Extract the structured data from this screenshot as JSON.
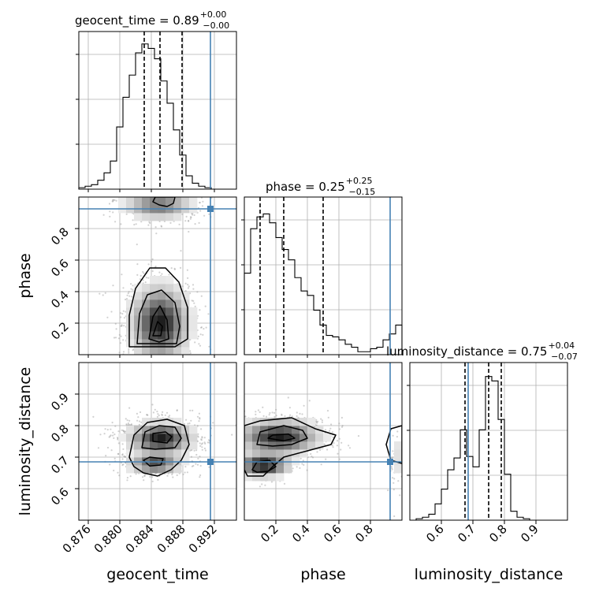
{
  "chart_data": {
    "type": "corner",
    "parameters": [
      "geocent_time",
      "phase",
      "luminosity_distance"
    ],
    "truths": {
      "geocent_time": 0.8915,
      "phase": 0.925,
      "luminosity_distance": 0.685
    },
    "ranges": {
      "geocent_time": [
        0.8748,
        0.8948
      ],
      "phase": [
        0.0,
        1.0
      ],
      "luminosity_distance": [
        0.5,
        1.0
      ]
    },
    "ticks": {
      "geocent_time": [
        0.876,
        0.88,
        0.884,
        0.888,
        0.892
      ],
      "phase_x": [
        0.2,
        0.4,
        0.6,
        0.8
      ],
      "phase_y": [
        0.2,
        0.4,
        0.6,
        0.8
      ],
      "luminosity_distance_x": [
        0.6,
        0.7,
        0.8,
        0.9
      ],
      "luminosity_distance_y": [
        0.6,
        0.7,
        0.8,
        0.9
      ]
    },
    "tick_labels": {
      "geocent_time": [
        "0.876",
        "0.880",
        "0.884",
        "0.888",
        "0.892"
      ],
      "phase": [
        "0.2",
        "0.4",
        "0.6",
        "0.8"
      ],
      "luminosity_distance": [
        "0.6",
        "0.7",
        "0.8",
        "0.9"
      ]
    },
    "axis_labels": {
      "geocent_time": "geocent_time",
      "phase": "phase",
      "luminosity_distance": "luminosity_distance"
    },
    "titles": {
      "geocent_time": {
        "prefix": "geocent_time = ",
        "value": "0.89",
        "plus": "+0.00",
        "minus": "−0.00"
      },
      "phase": {
        "prefix": "phase = ",
        "value": "0.25",
        "plus": "+0.25",
        "minus": "−0.15"
      },
      "luminosity_distance": {
        "prefix": "luminosity_distance = ",
        "value": "0.75",
        "plus": "+0.04",
        "minus": "−0.07"
      }
    },
    "quantiles": {
      "geocent_time": [
        0.8831,
        0.8851,
        0.8879
      ],
      "phase": [
        0.1,
        0.25,
        0.5
      ],
      "luminosity_distance": [
        0.675,
        0.75,
        0.79
      ]
    },
    "hist_geocent_time": {
      "bins_start": 0.8748,
      "bin_width": 0.0008,
      "counts": [
        0.01,
        0.02,
        0.03,
        0.06,
        0.11,
        0.19,
        0.42,
        0.62,
        0.77,
        0.92,
        0.98,
        0.95,
        0.88,
        0.73,
        0.58,
        0.4,
        0.23,
        0.09,
        0.04,
        0.02,
        0.01,
        0.0,
        0.0,
        0.0,
        0.0
      ]
    },
    "hist_phase": {
      "bins_start": 0.0,
      "bin_width": 0.04,
      "counts": [
        0.55,
        0.85,
        0.93,
        0.95,
        0.89,
        0.79,
        0.71,
        0.64,
        0.52,
        0.43,
        0.4,
        0.3,
        0.2,
        0.13,
        0.12,
        0.1,
        0.07,
        0.05,
        0.02,
        0.02,
        0.04,
        0.05,
        0.1,
        0.14,
        0.2
      ]
    },
    "hist_luminosity_distance": {
      "bins_start": 0.5,
      "bin_width": 0.02,
      "counts": [
        0.0,
        0.01,
        0.02,
        0.04,
        0.11,
        0.21,
        0.34,
        0.42,
        0.61,
        0.43,
        0.36,
        0.61,
        0.97,
        0.94,
        0.68,
        0.31,
        0.06,
        0.02,
        0.01,
        0.0,
        0.0,
        0.0,
        0.0,
        0.0,
        0.0
      ]
    },
    "pair_phase_vs_geocent_time": {
      "modes": [
        {
          "mx": 0.8851,
          "my": 0.2,
          "sx": 0.002,
          "sy": 0.13,
          "w": 0.78
        },
        {
          "mx": 0.8849,
          "my": 0.95,
          "sx": 0.0024,
          "sy": 0.05,
          "w": 0.22
        }
      ],
      "contours": [
        [
          [
            0.8812,
            0.05
          ],
          [
            0.8812,
            0.25
          ],
          [
            0.882,
            0.42
          ],
          [
            0.8838,
            0.55
          ],
          [
            0.8858,
            0.55
          ],
          [
            0.8875,
            0.46
          ],
          [
            0.8886,
            0.3
          ],
          [
            0.8886,
            0.1
          ],
          [
            0.887,
            0.05
          ]
        ],
        [
          [
            0.8822,
            0.07
          ],
          [
            0.8825,
            0.26
          ],
          [
            0.8835,
            0.38
          ],
          [
            0.8853,
            0.41
          ],
          [
            0.887,
            0.33
          ],
          [
            0.8876,
            0.18
          ],
          [
            0.8872,
            0.07
          ]
        ],
        [
          [
            0.8837,
            0.1
          ],
          [
            0.8842,
            0.24
          ],
          [
            0.8851,
            0.31
          ],
          [
            0.886,
            0.22
          ],
          [
            0.8862,
            0.1
          ],
          [
            0.885,
            0.08
          ]
        ],
        [
          [
            0.8842,
            0.12
          ],
          [
            0.8848,
            0.21
          ],
          [
            0.8854,
            0.18
          ],
          [
            0.8852,
            0.12
          ]
        ],
        [
          [
            0.8845,
            1.0
          ],
          [
            0.8842,
            0.97
          ],
          [
            0.885,
            0.95
          ],
          [
            0.886,
            0.94
          ],
          [
            0.8868,
            0.96
          ],
          [
            0.887,
            1.0
          ]
        ]
      ]
    },
    "pair_ld_vs_geocent_time": {
      "modes": [
        {
          "mx": 0.8852,
          "my": 0.76,
          "sx": 0.0022,
          "sy": 0.028,
          "w": 0.7
        },
        {
          "mx": 0.8845,
          "my": 0.68,
          "sx": 0.0018,
          "sy": 0.018,
          "w": 0.3
        }
      ],
      "contours": [
        [
          [
            0.8812,
            0.7
          ],
          [
            0.8818,
            0.77
          ],
          [
            0.8835,
            0.81
          ],
          [
            0.886,
            0.82
          ],
          [
            0.8882,
            0.8
          ],
          [
            0.8888,
            0.74
          ],
          [
            0.8878,
            0.69
          ],
          [
            0.8865,
            0.66
          ],
          [
            0.8848,
            0.64
          ],
          [
            0.883,
            0.65
          ],
          [
            0.8818,
            0.67
          ]
        ],
        [
          [
            0.8828,
            0.73
          ],
          [
            0.8832,
            0.78
          ],
          [
            0.885,
            0.8
          ],
          [
            0.887,
            0.795
          ],
          [
            0.8878,
            0.76
          ],
          [
            0.887,
            0.73
          ],
          [
            0.8845,
            0.725
          ]
        ],
        [
          [
            0.883,
            0.69
          ],
          [
            0.8838,
            0.7
          ],
          [
            0.8855,
            0.695
          ],
          [
            0.8852,
            0.675
          ],
          [
            0.8838,
            0.672
          ]
        ],
        [
          [
            0.8842,
            0.75
          ],
          [
            0.8842,
            0.775
          ],
          [
            0.8858,
            0.78
          ],
          [
            0.8866,
            0.765
          ],
          [
            0.886,
            0.745
          ]
        ]
      ]
    },
    "pair_ld_vs_phase": {
      "modes": [
        {
          "mx": 0.22,
          "my": 0.765,
          "sx": 0.14,
          "sy": 0.03,
          "w": 0.65
        },
        {
          "mx": 0.12,
          "my": 0.675,
          "sx": 0.09,
          "sy": 0.02,
          "w": 0.3
        },
        {
          "mx": 0.98,
          "my": 0.7,
          "sx": 0.04,
          "sy": 0.06,
          "w": 0.05
        }
      ],
      "contours": [
        [
          [
            0.0,
            0.77
          ],
          [
            0.0,
            0.8
          ],
          [
            0.1,
            0.815
          ],
          [
            0.3,
            0.825
          ],
          [
            0.45,
            0.79
          ],
          [
            0.58,
            0.77
          ],
          [
            0.55,
            0.74
          ],
          [
            0.4,
            0.72
          ],
          [
            0.25,
            0.7
          ],
          [
            0.18,
            0.67
          ],
          [
            0.12,
            0.64
          ],
          [
            0.02,
            0.64
          ],
          [
            0.0,
            0.66
          ]
        ],
        [
          [
            0.08,
            0.74
          ],
          [
            0.1,
            0.78
          ],
          [
            0.25,
            0.8
          ],
          [
            0.37,
            0.785
          ],
          [
            0.4,
            0.76
          ],
          [
            0.3,
            0.74
          ],
          [
            0.18,
            0.735
          ]
        ],
        [
          [
            0.05,
            0.66
          ],
          [
            0.08,
            0.685
          ],
          [
            0.16,
            0.69
          ],
          [
            0.2,
            0.67
          ],
          [
            0.15,
            0.655
          ],
          [
            0.08,
            0.652
          ]
        ],
        [
          [
            0.15,
            0.76
          ],
          [
            0.18,
            0.77
          ],
          [
            0.28,
            0.773
          ],
          [
            0.32,
            0.76
          ],
          [
            0.25,
            0.752
          ]
        ],
        [
          [
            1.0,
            0.68
          ],
          [
            0.93,
            0.69
          ],
          [
            0.9,
            0.74
          ],
          [
            0.93,
            0.79
          ],
          [
            1.0,
            0.8
          ]
        ]
      ]
    }
  }
}
